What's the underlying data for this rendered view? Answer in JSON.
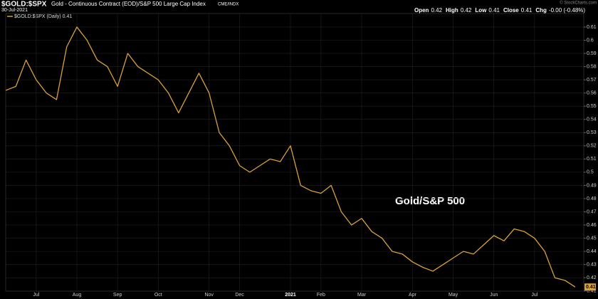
{
  "chart_data": {
    "type": "line",
    "title": "$GOLD:$SPX",
    "subtitle": "Gold - Continuous Contract (EOD)/S&P 500 Large Cap Index",
    "exchange": "CME/INDX",
    "date": "30-Jul-2021",
    "quote": [
      {
        "label": "Open",
        "value": "0.42"
      },
      {
        "label": "High",
        "value": "0.42"
      },
      {
        "label": "Low",
        "value": "0.41"
      },
      {
        "label": "Close",
        "value": "0.41"
      },
      {
        "label": "Chg",
        "value": "-0.00 (-0.48%)"
      }
    ],
    "source": "© StockCharts.com",
    "annotation": "Gold/S&P 500",
    "last_value_label": "0.41",
    "categories": [
      null,
      null,
      null,
      "Jul",
      null,
      null,
      null,
      "Aug",
      null,
      null,
      null,
      "Sep",
      null,
      null,
      null,
      "Oct",
      null,
      null,
      null,
      null,
      "Nov",
      null,
      null,
      "Dec",
      null,
      null,
      null,
      null,
      "2021",
      null,
      null,
      "Feb",
      null,
      null,
      null,
      "Mar",
      null,
      null,
      null,
      null,
      "Apr",
      null,
      null,
      null,
      "May",
      null,
      null,
      null,
      "Jun",
      null,
      null,
      null,
      "Jul",
      null,
      null,
      null,
      null
    ],
    "series": [
      {
        "name": "$GOLD:$SPX (Daily) 0.41",
        "color": "#d9a13b",
        "values": [
          0.562,
          0.565,
          0.585,
          0.57,
          0.56,
          0.555,
          0.595,
          0.61,
          0.6,
          0.585,
          0.58,
          0.565,
          0.59,
          0.58,
          0.575,
          0.57,
          0.56,
          0.545,
          0.56,
          0.575,
          0.56,
          0.53,
          0.52,
          0.505,
          0.5,
          0.505,
          0.51,
          0.508,
          0.52,
          0.49,
          0.486,
          0.484,
          0.49,
          0.47,
          0.46,
          0.465,
          0.455,
          0.45,
          0.44,
          0.438,
          0.432,
          0.428,
          0.425,
          0.43,
          0.435,
          0.44,
          0.438,
          0.445,
          0.452,
          0.448,
          0.457,
          0.455,
          0.45,
          0.44,
          0.42,
          0.418,
          0.413
        ]
      }
    ],
    "ylim": [
      0.405,
      0.624
    ],
    "yticks": [
      0.41,
      0.42,
      0.43,
      0.44,
      0.45,
      0.46,
      0.47,
      0.48,
      0.49,
      0.5,
      0.51,
      0.52,
      0.53,
      0.54,
      0.55,
      0.56,
      0.57,
      0.58,
      0.59,
      0.6,
      0.61
    ],
    "grid": true
  }
}
